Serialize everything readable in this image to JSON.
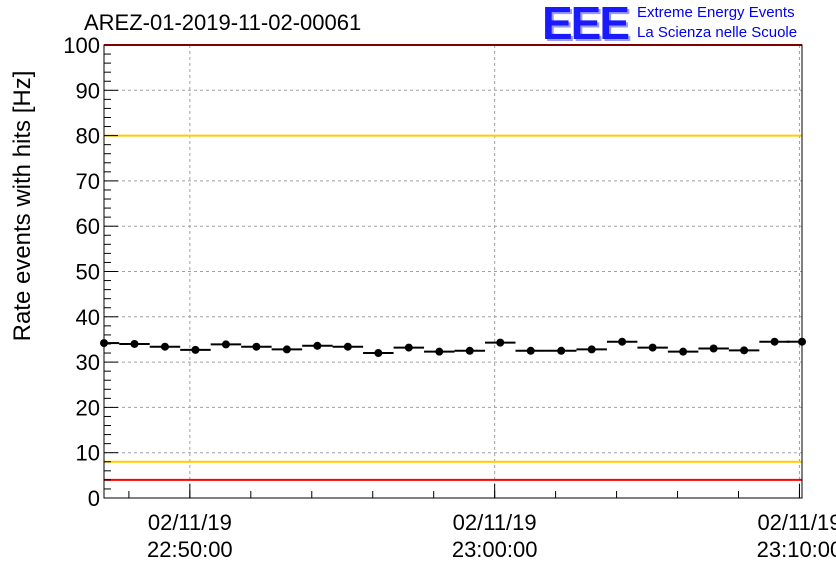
{
  "title": "AREZ-01-2019-11-02-00061",
  "logo": {
    "mark": "EEE",
    "line1": "Extreme Energy Events",
    "line2": "La Scienza nelle Scuole"
  },
  "chart_data": {
    "type": "scatter",
    "ylabel": "Rate events with hits [Hz]",
    "ylim": [
      0,
      100
    ],
    "yticks": [
      0,
      10,
      20,
      30,
      40,
      50,
      60,
      70,
      80,
      90,
      100
    ],
    "xlim": [
      "2019-11-02 22:47:11",
      "2019-11-02 23:10:05"
    ],
    "xticks": [
      {
        "date": "02/11/19",
        "time": "22:50:00",
        "at": "2019-11-02 22:50:00"
      },
      {
        "date": "02/11/19",
        "time": "23:00:00",
        "at": "2019-11-02 23:00:00"
      },
      {
        "date": "02/11/19",
        "time": "23:10:00",
        "at": "2019-11-02 23:10:00"
      }
    ],
    "grid": true,
    "series": [
      {
        "x": [
          "22:47:11",
          "22:48:11",
          "22:49:11",
          "22:50:11",
          "22:51:11",
          "22:52:11",
          "22:53:11",
          "22:54:11",
          "22:55:11",
          "22:56:11",
          "22:57:11",
          "22:58:11",
          "22:59:11",
          "23:00:11",
          "23:01:11",
          "23:02:11",
          "23:03:11",
          "23:04:11",
          "23:05:11",
          "23:06:11",
          "23:07:11",
          "23:08:11",
          "23:09:11",
          "23:10:05"
        ],
        "values": [
          34.2,
          34.0,
          33.4,
          32.7,
          33.9,
          33.4,
          32.8,
          33.6,
          33.4,
          32.0,
          33.2,
          32.3,
          32.5,
          34.3,
          32.5,
          32.5,
          32.8,
          34.5,
          33.2,
          32.3,
          33.0,
          32.6,
          34.5,
          34.5
        ],
        "color": "#000000"
      }
    ],
    "reference_lines": [
      {
        "y": 100,
        "color": "#ff0000"
      },
      {
        "y": 80,
        "color": "#ffcc00"
      },
      {
        "y": 8,
        "color": "#ffcc00"
      },
      {
        "y": 4,
        "color": "#ff0000"
      }
    ]
  }
}
